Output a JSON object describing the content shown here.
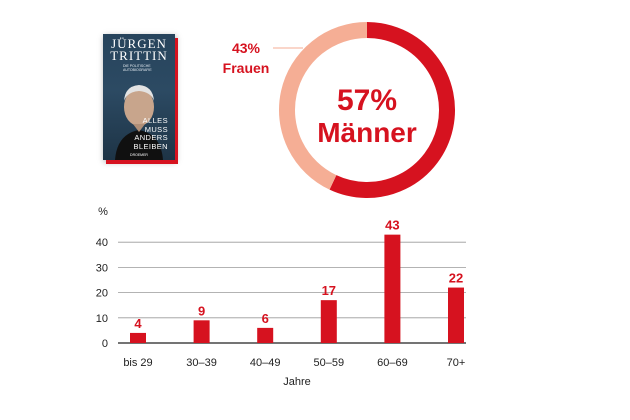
{
  "book": {
    "author": "JÜRGEN TRITTIN",
    "subtitle": "DIE POLITISCHE AUTOBIOGRAFIE",
    "title": "ALLES MUSS ANDERS BLEIBEN",
    "publisher": "DROEMER"
  },
  "colors": {
    "accent": "#d6121f",
    "secondary": "#f5ae95",
    "grid": "#9a9a9a",
    "axis": "#222222"
  },
  "chart_data": [
    {
      "type": "pie",
      "style": "donut",
      "slices": [
        {
          "value": 57,
          "label": "57%",
          "name": "Männer",
          "color": "#d6121f"
        },
        {
          "value": 43,
          "label": "43%",
          "name": "Frauen",
          "color": "#f5ae95"
        }
      ]
    },
    {
      "type": "bar",
      "ylabel": "%",
      "xlabel": "Jahre",
      "categories": [
        "bis 29",
        "30–39",
        "40–49",
        "50–59",
        "60–69",
        "70+"
      ],
      "values": [
        4,
        9,
        6,
        17,
        43,
        22
      ],
      "yticks": [
        0,
        10,
        20,
        30,
        40
      ],
      "ylim": [
        0,
        45
      ],
      "grid": true,
      "color": "#d6121f"
    }
  ]
}
